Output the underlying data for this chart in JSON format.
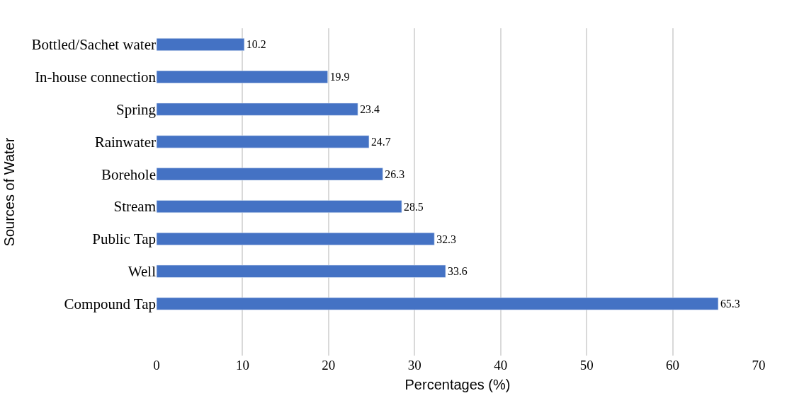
{
  "chart_data": {
    "type": "bar",
    "orientation": "horizontal",
    "xlabel": "Percentages (%)",
    "ylabel": "Sources of Water",
    "categories": [
      "Bottled/Sachet water",
      "In-house connection",
      "Spring",
      "Rainwater",
      "Borehole",
      "Stream",
      "Public Tap",
      "Well",
      "Compound Tap"
    ],
    "values": [
      10.2,
      19.9,
      23.4,
      24.7,
      26.3,
      28.5,
      32.3,
      33.6,
      65.3
    ],
    "color": "#4472c4",
    "xlim": [
      0,
      70
    ],
    "xticks": [
      0,
      10,
      20,
      30,
      40,
      50,
      60,
      70
    ],
    "grid": "x",
    "data_labels": true
  }
}
